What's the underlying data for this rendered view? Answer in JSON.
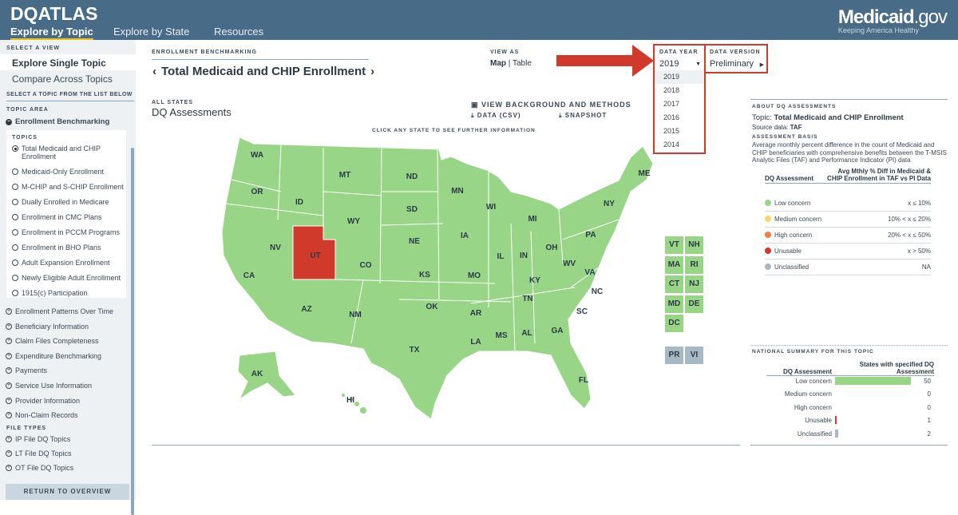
{
  "header": {
    "logo": "DQATLAS",
    "nav": [
      "Explore by Topic",
      "Explore by State",
      "Resources"
    ],
    "brand_main": "Medicaid",
    "brand_suffix": ".gov",
    "brand_tagline": "Keeping America Healthy"
  },
  "sidebar": {
    "select_view": "SELECT A VIEW",
    "views": [
      "Explore Single Topic",
      "Compare Across Topics"
    ],
    "select_topic": "SELECT A TOPIC FROM THE LIST BELOW",
    "topic_area": "TOPIC AREA",
    "open_area": "Enrollment Benchmarking",
    "topics_label": "TOPICS",
    "topics": [
      "Total Medicaid and CHIP Enrollment",
      "Medicaid-Only Enrollment",
      "M-CHIP and S-CHIP Enrollment",
      "Dually Enrolled in Medicare",
      "Enrollment in CMC Plans",
      "Enrollment in PCCM Programs",
      "Enrollment in BHO Plans",
      "Adult Expansion Enrollment",
      "Newly Eligible Adult Enrollment",
      "1915(c) Participation"
    ],
    "areas": [
      "Enrollment Patterns Over Time",
      "Beneficiary Information",
      "Claim Files Completeness",
      "Expenditure Benchmarking",
      "Payments",
      "Service Use Information",
      "Provider Information",
      "Non-Claim Records"
    ],
    "file_types": "FILE TYPES",
    "files": [
      "IP File DQ Topics",
      "LT File DQ Topics",
      "OT File DQ Topics"
    ],
    "return": "RETURN TO OVERVIEW"
  },
  "main": {
    "breadcrumb": "ENROLLMENT BENCHMARKING",
    "title": "Total Medicaid and CHIP Enrollment",
    "view_as": "VIEW AS",
    "view_map": "Map",
    "view_sep": "|",
    "view_table": "Table",
    "data_year_label": "DATA YEAR",
    "data_year": "2019",
    "years": [
      "2019",
      "2018",
      "2017",
      "2016",
      "2015",
      "2014"
    ],
    "data_version_label": "DATA VERSION",
    "data_version": "Preliminary",
    "all_states": "ALL STATES",
    "subtitle": "DQ Assessments",
    "view_background": "VIEW BACKGROUND AND METHODS",
    "data_csv": "DATA (CSV)",
    "snapshot": "SNAPSHOT",
    "click_hint": "CLICK ANY STATE TO SEE FURTHER INFORMATION"
  },
  "map": {
    "colors": {
      "low": "#98d587",
      "unusable": "#d03a2b",
      "unclassified": "#a8b8c4"
    },
    "states": [
      "WA",
      "OR",
      "CA",
      "ID",
      "NV",
      "MT",
      "WY",
      "UT",
      "AZ",
      "CO",
      "NM",
      "ND",
      "SD",
      "NE",
      "KS",
      "OK",
      "TX",
      "MN",
      "IA",
      "MO",
      "AR",
      "LA",
      "WI",
      "IL",
      "MI",
      "IN",
      "OH",
      "KY",
      "TN",
      "MS",
      "AL",
      "GA",
      "FL",
      "SC",
      "NC",
      "VA",
      "WV",
      "PA",
      "NY",
      "ME",
      "AK",
      "HI"
    ],
    "small_states": [
      "VT",
      "NH",
      "MA",
      "RI",
      "CT",
      "NJ",
      "MD",
      "DE",
      "DC"
    ],
    "territories": [
      "PR",
      "VI"
    ],
    "unusable_state": "UT"
  },
  "about": {
    "heading": "ABOUT DQ ASSESSMENTS",
    "topic_label": "Topic:",
    "topic": "Total Medicaid and CHIP Enrollment",
    "source_label": "Source data:",
    "source": "TAF",
    "basis_heading": "ASSESSMENT BASIS",
    "basis": "Average monthly percent difference in the count of Medicaid and CHIP beneficiaries with comprehensive benefits between the T-MSIS Analytic Files (TAF) and Performance Indicator (PI) data",
    "col1": "DQ Assessment",
    "col2": "Avg Mthly % Diff in Medicaid & CHIP Enrollment in TAF vs PI Data",
    "legend": [
      {
        "label": "Low concern",
        "range": "x ≤ 10%",
        "color": "#98d587"
      },
      {
        "label": "Medium concern",
        "range": "10% < x ≤ 20%",
        "color": "#f8d66a"
      },
      {
        "label": "High concern",
        "range": "20% < x ≤ 50%",
        "color": "#f27a45"
      },
      {
        "label": "Unusable",
        "range": "x > 50%",
        "color": "#d03a2b"
      },
      {
        "label": "Unclassified",
        "range": "NA",
        "color": "#a8b8c4"
      }
    ]
  },
  "summary": {
    "heading": "NATIONAL SUMMARY FOR THIS TOPIC",
    "col1": "DQ Assessment",
    "col2": "States with specified DQ Assessment",
    "rows": [
      {
        "label": "Low concern",
        "count": "50",
        "value": 50,
        "color": "#98d587"
      },
      {
        "label": "Medium concern",
        "count": "0",
        "value": 0,
        "color": "#f8d66a"
      },
      {
        "label": "High concern",
        "count": "0",
        "value": 0,
        "color": "#f27a45"
      },
      {
        "label": "Unusable",
        "count": "1",
        "value": 1,
        "color": "#d03a2b"
      },
      {
        "label": "Unclassified",
        "count": "2",
        "value": 2,
        "color": "#a8b8c4"
      }
    ]
  }
}
